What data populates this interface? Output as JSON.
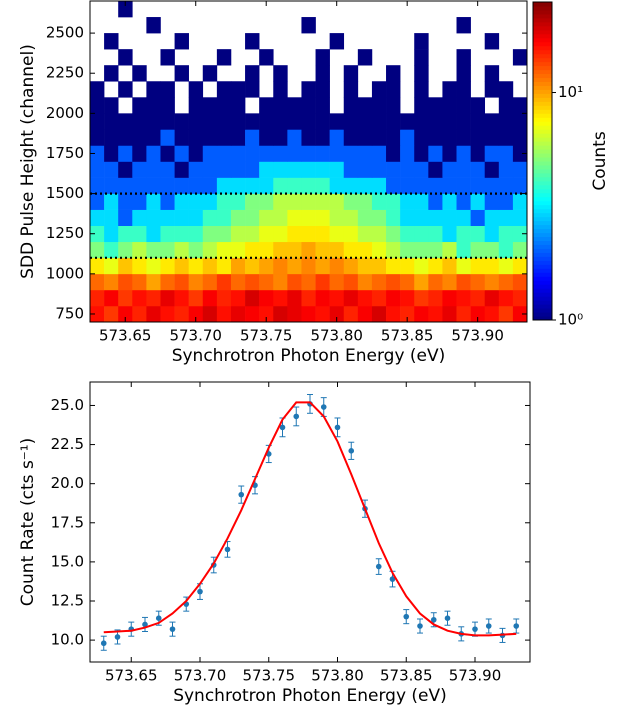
{
  "chart_data": [
    {
      "type": "heatmap",
      "xlabel": "Synchrotron Photon Energy (eV)",
      "ylabel": "SDD Pulse Height (channel)",
      "x": [
        573.63,
        573.64,
        573.65,
        573.66,
        573.67,
        573.68,
        573.69,
        573.7,
        573.71,
        573.72,
        573.73,
        573.74,
        573.75,
        573.76,
        573.77,
        573.78,
        573.79,
        573.8,
        573.81,
        573.82,
        573.83,
        573.84,
        573.85,
        573.86,
        573.87,
        573.88,
        573.89,
        573.9,
        573.91,
        573.92,
        573.93
      ],
      "y_bins": [
        700,
        800,
        900,
        1000,
        1100,
        1200,
        1300,
        1400,
        1500,
        1600,
        1700,
        1800,
        1900,
        2000,
        2100,
        2200,
        2300,
        2400,
        2500,
        2600,
        2700
      ],
      "values": [
        [
          16,
          14,
          17,
          15,
          18,
          16,
          15,
          17,
          19,
          16,
          18,
          17,
          16,
          19,
          18,
          17,
          16,
          18,
          15,
          17,
          19,
          16,
          15,
          17,
          16,
          18,
          15,
          17,
          16,
          14,
          17
        ],
        [
          15,
          17,
          14,
          16,
          15,
          18,
          16,
          14,
          17,
          15,
          16,
          19,
          17,
          16,
          18,
          15,
          17,
          16,
          18,
          16,
          15,
          17,
          16,
          14,
          15,
          17,
          16,
          15,
          18,
          16,
          15
        ],
        [
          12,
          11,
          13,
          12,
          10,
          12,
          13,
          11,
          12,
          14,
          12,
          13,
          12,
          11,
          13,
          12,
          14,
          12,
          13,
          11,
          12,
          13,
          12,
          10,
          12,
          11,
          13,
          12,
          11,
          12,
          13
        ],
        [
          8,
          7,
          9,
          8,
          7,
          8,
          9,
          8,
          9,
          8,
          10,
          9,
          10,
          11,
          10,
          11,
          10,
          11,
          10,
          9,
          9,
          8,
          8,
          7,
          8,
          9,
          7,
          8,
          8,
          7,
          8
        ],
        [
          5,
          4,
          5,
          6,
          5,
          5,
          6,
          5,
          6,
          7,
          7,
          8,
          8,
          9,
          9,
          10,
          9,
          9,
          8,
          8,
          7,
          6,
          5,
          5,
          5,
          6,
          4,
          5,
          5,
          4,
          5
        ],
        [
          4,
          3,
          4,
          4,
          3,
          4,
          4,
          4,
          5,
          5,
          6,
          6,
          7,
          7,
          8,
          8,
          8,
          7,
          7,
          6,
          6,
          5,
          4,
          4,
          4,
          3,
          4,
          4,
          3,
          4,
          4
        ],
        [
          3,
          3,
          2,
          3,
          3,
          3,
          3,
          3,
          4,
          4,
          5,
          5,
          6,
          6,
          7,
          7,
          7,
          6,
          6,
          5,
          5,
          4,
          3,
          3,
          3,
          3,
          3,
          2,
          3,
          3,
          3
        ],
        [
          2,
          3,
          2,
          2,
          3,
          2,
          3,
          3,
          3,
          4,
          4,
          5,
          5,
          6,
          6,
          6,
          6,
          6,
          5,
          5,
          4,
          4,
          3,
          3,
          2,
          3,
          2,
          3,
          2,
          2,
          3
        ],
        [
          2,
          2,
          2,
          2,
          2,
          2,
          2,
          2,
          2,
          3,
          3,
          3,
          3,
          4,
          4,
          4,
          4,
          3,
          3,
          3,
          3,
          2,
          2,
          2,
          2,
          2,
          2,
          2,
          2,
          2,
          2
        ],
        [
          2,
          2,
          1,
          2,
          2,
          2,
          1,
          2,
          2,
          2,
          2,
          2,
          3,
          3,
          3,
          3,
          3,
          3,
          2,
          2,
          2,
          2,
          2,
          2,
          1,
          2,
          2,
          2,
          1,
          2,
          2
        ],
        [
          2,
          1,
          2,
          1,
          2,
          1,
          2,
          1,
          2,
          2,
          2,
          2,
          2,
          2,
          2,
          2,
          2,
          2,
          2,
          2,
          2,
          1,
          2,
          1,
          2,
          1,
          2,
          1,
          2,
          2,
          1
        ],
        [
          1,
          1,
          1,
          1,
          1,
          2,
          1,
          1,
          1,
          1,
          1,
          2,
          1,
          1,
          2,
          1,
          1,
          2,
          1,
          1,
          1,
          1,
          2,
          1,
          1,
          1,
          1,
          1,
          1,
          1,
          1
        ],
        [
          1,
          1,
          1,
          1,
          1,
          1,
          1,
          1,
          1,
          1,
          1,
          1,
          1,
          1,
          1,
          1,
          1,
          1,
          1,
          1,
          1,
          1,
          1,
          1,
          1,
          1,
          1,
          1,
          1,
          1,
          1
        ],
        [
          1,
          1,
          null,
          1,
          1,
          1,
          null,
          1,
          1,
          1,
          1,
          null,
          1,
          1,
          1,
          1,
          1,
          null,
          1,
          1,
          1,
          1,
          null,
          1,
          1,
          1,
          1,
          1,
          null,
          1,
          1
        ],
        [
          1,
          null,
          1,
          null,
          1,
          1,
          null,
          1,
          null,
          1,
          1,
          1,
          null,
          1,
          null,
          1,
          1,
          null,
          1,
          null,
          1,
          1,
          null,
          1,
          null,
          1,
          1,
          null,
          1,
          1,
          null
        ],
        [
          null,
          1,
          null,
          1,
          null,
          null,
          1,
          null,
          1,
          null,
          null,
          1,
          null,
          1,
          null,
          null,
          1,
          null,
          1,
          null,
          null,
          1,
          null,
          1,
          null,
          null,
          1,
          null,
          1,
          null,
          null
        ],
        [
          null,
          null,
          1,
          null,
          null,
          1,
          null,
          null,
          null,
          1,
          null,
          null,
          1,
          null,
          null,
          null,
          1,
          null,
          null,
          1,
          null,
          null,
          null,
          1,
          null,
          null,
          1,
          null,
          null,
          null,
          1
        ],
        [
          null,
          1,
          null,
          null,
          null,
          null,
          1,
          null,
          null,
          null,
          null,
          1,
          null,
          null,
          null,
          null,
          null,
          1,
          null,
          null,
          null,
          null,
          null,
          1,
          null,
          null,
          null,
          null,
          1,
          null,
          null
        ],
        [
          null,
          null,
          null,
          null,
          1,
          null,
          null,
          null,
          null,
          null,
          null,
          null,
          null,
          null,
          null,
          1,
          null,
          null,
          null,
          null,
          null,
          null,
          null,
          null,
          null,
          null,
          1,
          null,
          null,
          null,
          null
        ],
        [
          null,
          null,
          1,
          null,
          null,
          null,
          null,
          null,
          null,
          null,
          null,
          null,
          null,
          null,
          null,
          null,
          null,
          null,
          null,
          null,
          null,
          null,
          null,
          null,
          null,
          null,
          null,
          null,
          null,
          null,
          null
        ]
      ],
      "xlim": [
        573.625,
        573.935
      ],
      "ylim": [
        700,
        2700
      ],
      "xticks": [
        {
          "value": 573.65,
          "label": "573.65"
        },
        {
          "value": 573.7,
          "label": "573.70"
        },
        {
          "value": 573.75,
          "label": "573.75"
        },
        {
          "value": 573.8,
          "label": "573.80"
        },
        {
          "value": 573.85,
          "label": "573.85"
        },
        {
          "value": 573.9,
          "label": "573.90"
        }
      ],
      "yticks": [
        750,
        1000,
        1250,
        1500,
        1750,
        2000,
        2250,
        2500
      ],
      "hlines": [
        1100,
        1500
      ],
      "colorbar": {
        "label": "Counts",
        "colormap": "jet",
        "log": true,
        "clim": [
          1,
          25
        ],
        "ticks": [
          {
            "value": 1,
            "label": "10⁰"
          },
          {
            "value": 10,
            "label": "10¹"
          }
        ]
      }
    },
    {
      "type": "scatter",
      "xlabel": "Synchrotron Photon Energy (eV)",
      "ylabel": "Count Rate (cts s⁻¹)",
      "x": [
        573.63,
        573.64,
        573.65,
        573.66,
        573.67,
        573.68,
        573.69,
        573.7,
        573.71,
        573.72,
        573.73,
        573.74,
        573.75,
        573.76,
        573.77,
        573.78,
        573.79,
        573.8,
        573.81,
        573.82,
        573.83,
        573.84,
        573.85,
        573.86,
        573.87,
        573.88,
        573.89,
        573.9,
        573.91,
        573.92,
        573.93
      ],
      "series": [
        {
          "type": "errorbar",
          "color": "#1f77b4",
          "values": [
            9.8,
            10.2,
            10.7,
            11.0,
            11.4,
            10.7,
            12.3,
            13.1,
            14.8,
            15.8,
            19.3,
            19.9,
            21.9,
            23.6,
            24.3,
            25.1,
            24.9,
            23.6,
            22.1,
            18.4,
            14.7,
            13.9,
            11.5,
            10.9,
            11.3,
            11.4,
            10.4,
            10.7,
            10.9,
            10.3,
            10.9
          ],
          "errors": [
            0.45,
            0.45,
            0.45,
            0.45,
            0.45,
            0.45,
            0.45,
            0.5,
            0.5,
            0.5,
            0.55,
            0.55,
            0.55,
            0.6,
            0.6,
            0.6,
            0.6,
            0.6,
            0.55,
            0.55,
            0.5,
            0.5,
            0.45,
            0.45,
            0.45,
            0.45,
            0.45,
            0.45,
            0.45,
            0.45,
            0.45
          ]
        },
        {
          "type": "line",
          "color": "#ff0000",
          "values": [
            10.5,
            10.55,
            10.6,
            10.8,
            11.1,
            11.7,
            12.5,
            13.6,
            14.9,
            16.5,
            18.3,
            20.3,
            22.3,
            24.1,
            25.2,
            25.2,
            24.3,
            22.7,
            20.6,
            18.4,
            16.2,
            14.3,
            12.8,
            11.7,
            11.0,
            10.6,
            10.4,
            10.3,
            10.3,
            10.35,
            10.4
          ]
        }
      ],
      "xlim": [
        573.62,
        573.94
      ],
      "ylim": [
        8.6,
        26.5
      ],
      "xticks": [
        {
          "value": 573.65,
          "label": "573.65"
        },
        {
          "value": 573.7,
          "label": "573.70"
        },
        {
          "value": 573.75,
          "label": "573.75"
        },
        {
          "value": 573.8,
          "label": "573.80"
        },
        {
          "value": 573.85,
          "label": "573.85"
        },
        {
          "value": 573.9,
          "label": "573.90"
        }
      ],
      "yticks": [
        {
          "value": 10,
          "label": "10.0"
        },
        {
          "value": 12.5,
          "label": "12.5"
        },
        {
          "value": 15,
          "label": "15.0"
        },
        {
          "value": 17.5,
          "label": "17.5"
        },
        {
          "value": 20,
          "label": "20.0"
        },
        {
          "value": 22.5,
          "label": "22.5"
        },
        {
          "value": 25,
          "label": "25.0"
        }
      ]
    }
  ]
}
